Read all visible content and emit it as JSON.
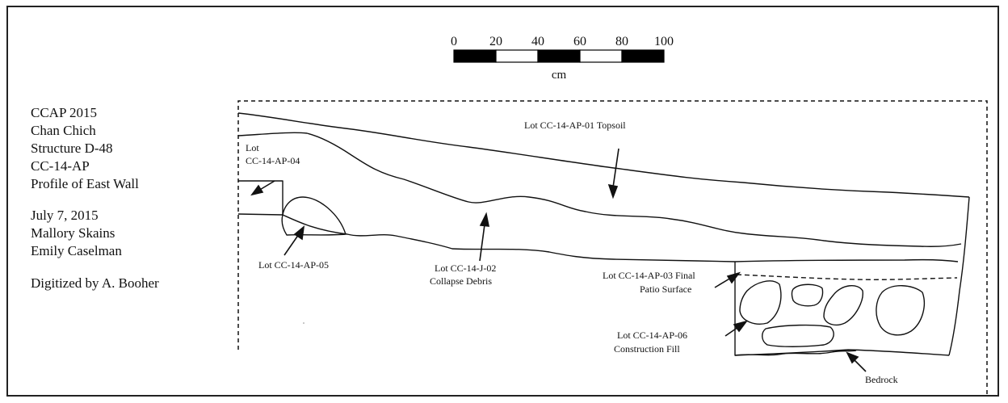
{
  "info_block": {
    "line1": "CCAP 2015",
    "line2": "Chan Chich",
    "line3": "Structure D-48",
    "line4": "CC-14-AP",
    "line5": "Profile of East Wall",
    "date": "July 7, 2015",
    "author1": "Mallory Skains",
    "author2": "Emily Caselman",
    "digitized": "Digitized by A. Booher"
  },
  "scale_bar": {
    "tick_labels": [
      "0",
      "20",
      "40",
      "60",
      "80",
      "100"
    ],
    "unit": "cm"
  },
  "labels": {
    "topsoil": "Lot CC-14-AP-01 Topsoil",
    "lot04_a": "Lot",
    "lot04_b": "CC-14-AP-04",
    "lot05": "Lot CC-14-AP-05",
    "collapse_a": "Lot CC-14-J-02",
    "collapse_b": "Collapse Debris",
    "patio_a": "Lot CC-14-AP-03 Final",
    "patio_b": "Patio Surface",
    "fill_a": "Lot CC-14-AP-06",
    "fill_b": "Construction Fill",
    "bedrock": "Bedrock"
  },
  "colors": {
    "ink": "#111111",
    "scale_dark": "#000000",
    "scale_light": "#ffffff"
  }
}
